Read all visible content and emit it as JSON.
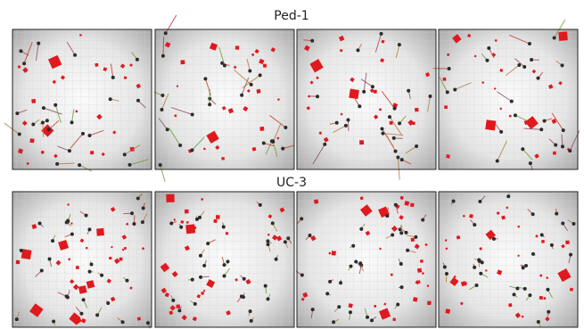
{
  "rows": [
    {
      "title": "Ped-1"
    },
    {
      "title": "UC-3"
    }
  ]
}
